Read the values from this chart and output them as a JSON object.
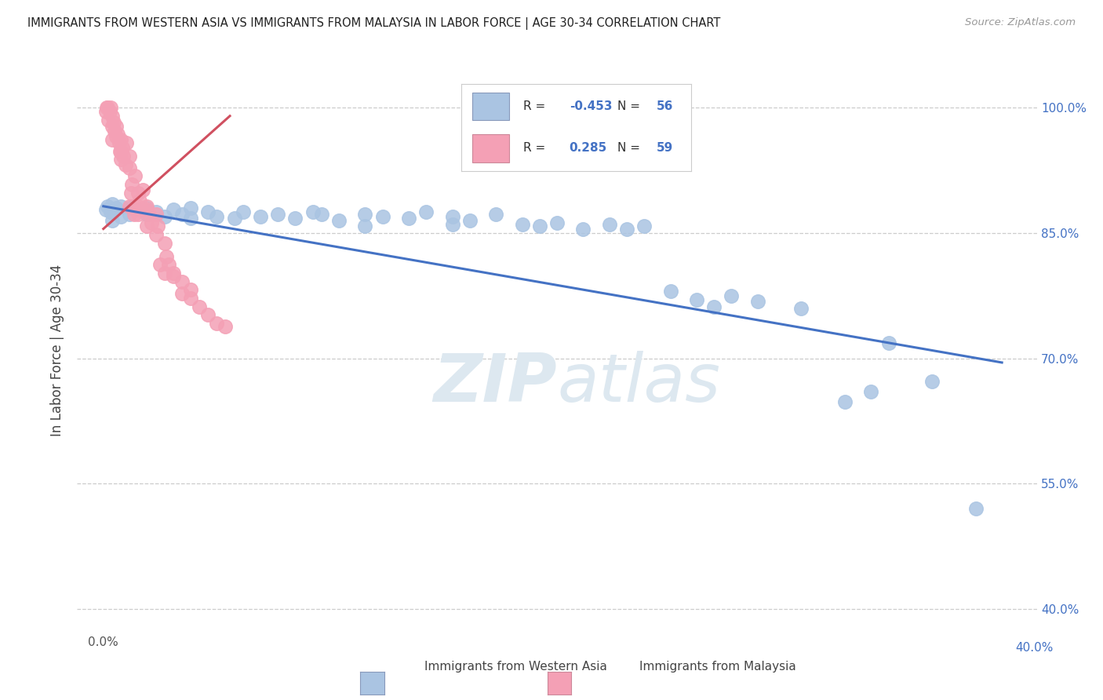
{
  "title": "IMMIGRANTS FROM WESTERN ASIA VS IMMIGRANTS FROM MALAYSIA IN LABOR FORCE | AGE 30-34 CORRELATION CHART",
  "source": "Source: ZipAtlas.com",
  "ylabel": "In Labor Force | Age 30-34",
  "legend_R_blue": "-0.453",
  "legend_N_blue": "56",
  "legend_R_pink": "0.285",
  "legend_N_pink": "59",
  "blue_color": "#aac4e2",
  "pink_color": "#f4a0b5",
  "blue_line_color": "#4472c4",
  "pink_line_color": "#d05060",
  "watermark_zip_color": "#dde8f0",
  "watermark_atlas_color": "#dde8f0",
  "background_color": "#ffffff",
  "grid_color": "#cccccc",
  "ytick_positions": [
    0.4,
    0.55,
    0.7,
    0.85,
    1.0
  ],
  "ytick_labels": [
    "40.0%",
    "55.0%",
    "70.0%",
    "85.0%",
    "100.0%"
  ],
  "xtick_left_label": "0.0%",
  "xtick_right_label": "40.0%",
  "xlim": [
    -0.003,
    0.107
  ],
  "ylim": [
    0.375,
    1.045
  ],
  "blue_trend_x": [
    0.0,
    0.103
  ],
  "blue_trend_y": [
    0.882,
    0.695
  ],
  "pink_trend_x": [
    0.0,
    0.0145
  ],
  "pink_trend_y": [
    0.855,
    0.99
  ],
  "blue_x": [
    0.0003,
    0.0005,
    0.0008,
    0.001,
    0.001,
    0.0015,
    0.002,
    0.002,
    0.003,
    0.003,
    0.004,
    0.005,
    0.005,
    0.006,
    0.007,
    0.008,
    0.009,
    0.01,
    0.01,
    0.012,
    0.013,
    0.015,
    0.016,
    0.018,
    0.02,
    0.022,
    0.024,
    0.025,
    0.027,
    0.03,
    0.03,
    0.032,
    0.035,
    0.037,
    0.04,
    0.04,
    0.042,
    0.045,
    0.048,
    0.05,
    0.052,
    0.055,
    0.058,
    0.06,
    0.062,
    0.065,
    0.068,
    0.07,
    0.072,
    0.075,
    0.08,
    0.085,
    0.088,
    0.09,
    0.095,
    0.1
  ],
  "blue_y": [
    0.878,
    0.882,
    0.875,
    0.885,
    0.865,
    0.88,
    0.882,
    0.87,
    0.88,
    0.872,
    0.878,
    0.88,
    0.872,
    0.875,
    0.87,
    0.878,
    0.872,
    0.88,
    0.868,
    0.875,
    0.87,
    0.868,
    0.875,
    0.87,
    0.872,
    0.868,
    0.875,
    0.872,
    0.865,
    0.872,
    0.858,
    0.87,
    0.868,
    0.875,
    0.87,
    0.86,
    0.865,
    0.872,
    0.86,
    0.858,
    0.862,
    0.855,
    0.86,
    0.855,
    0.858,
    0.78,
    0.77,
    0.762,
    0.775,
    0.768,
    0.76,
    0.648,
    0.66,
    0.718,
    0.672,
    0.52
  ],
  "pink_x": [
    0.00025,
    0.0004,
    0.0005,
    0.0006,
    0.0007,
    0.0008,
    0.001,
    0.001,
    0.001,
    0.0012,
    0.0013,
    0.0015,
    0.0015,
    0.0016,
    0.0018,
    0.0019,
    0.002,
    0.002,
    0.002,
    0.0022,
    0.0023,
    0.0025,
    0.0026,
    0.003,
    0.003,
    0.003,
    0.0032,
    0.0033,
    0.0035,
    0.0036,
    0.004,
    0.004,
    0.004,
    0.0042,
    0.0044,
    0.0045,
    0.005,
    0.005,
    0.005,
    0.0052,
    0.0055,
    0.006,
    0.006,
    0.0062,
    0.0065,
    0.007,
    0.007,
    0.0072,
    0.0075,
    0.008,
    0.008,
    0.009,
    0.009,
    0.01,
    0.01,
    0.011,
    0.012,
    0.013,
    0.014
  ],
  "pink_y": [
    0.995,
    1.0,
    1.0,
    0.985,
    0.995,
    1.0,
    0.99,
    0.978,
    0.962,
    0.982,
    0.972,
    0.965,
    0.978,
    0.968,
    0.958,
    0.948,
    0.962,
    0.948,
    0.938,
    0.952,
    0.942,
    0.932,
    0.958,
    0.942,
    0.928,
    0.882,
    0.898,
    0.908,
    0.872,
    0.918,
    0.882,
    0.872,
    0.898,
    0.888,
    0.878,
    0.902,
    0.878,
    0.858,
    0.882,
    0.872,
    0.862,
    0.872,
    0.848,
    0.858,
    0.812,
    0.838,
    0.802,
    0.822,
    0.812,
    0.798,
    0.802,
    0.792,
    0.778,
    0.772,
    0.782,
    0.762,
    0.752,
    0.742,
    0.738
  ]
}
